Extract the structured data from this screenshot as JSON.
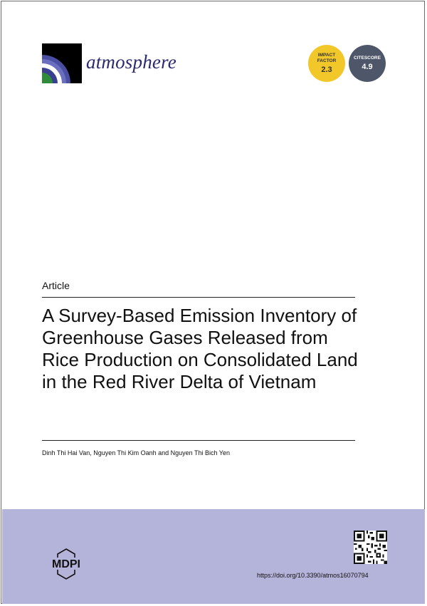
{
  "journal": {
    "name": "atmosphere",
    "logo_icon": "atmosphere-arcs-logo"
  },
  "metrics": {
    "impact_factor_label": "IMPACT FACTOR",
    "impact_factor_value": "2.3",
    "impact_factor_color": "#f2c72a",
    "citescore_label": "CITESCORE",
    "citescore_value": "4.9",
    "citescore_color": "#4e566a"
  },
  "article": {
    "type": "Article",
    "title": "A Survey-Based Emission Inventory of Greenhouse Gases Released from Rice Production on Consolidated Land in the Red River Delta of Vietnam",
    "authors": "Dinh Thi Hai Van, Nguyen Thi Kim Oanh and Nguyen Thi Bich Yen"
  },
  "footer": {
    "publisher": "MDPI",
    "doi": "https://doi.org/10.3390/atmos16070794",
    "background": "#b4b3d9",
    "qr_icon": "qr-code-icon"
  }
}
